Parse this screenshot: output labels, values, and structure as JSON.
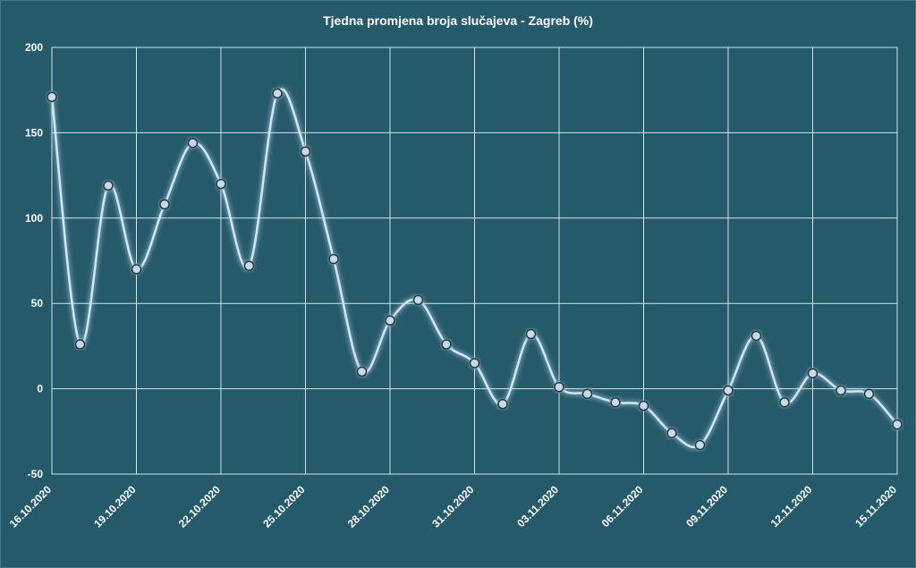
{
  "chart_data": {
    "type": "line",
    "title": "Tjedna promjena broja slučajeva - Zagreb (%)",
    "xlabel": "",
    "ylabel": "",
    "ylim": [
      -50,
      200
    ],
    "yticks": [
      "200",
      "150",
      "100",
      "50",
      "0",
      "-50"
    ],
    "x_tick_labels": [
      "16.10.2020",
      "19.10.2020",
      "22.10.2020",
      "25.10.2020",
      "28.10.2020",
      "31.10.2020",
      "03.11.2020",
      "06.11.2020",
      "09.11.2020",
      "12.11.2020",
      "15.11.2020"
    ],
    "x": [
      "16.10.2020",
      "17.10.2020",
      "18.10.2020",
      "19.10.2020",
      "20.10.2020",
      "21.10.2020",
      "22.10.2020",
      "23.10.2020",
      "24.10.2020",
      "25.10.2020",
      "26.10.2020",
      "27.10.2020",
      "28.10.2020",
      "29.10.2020",
      "30.10.2020",
      "31.10.2020",
      "01.11.2020",
      "02.11.2020",
      "03.11.2020",
      "04.11.2020",
      "05.11.2020",
      "06.11.2020",
      "07.11.2020",
      "08.11.2020",
      "09.11.2020",
      "10.11.2020",
      "11.11.2020",
      "12.11.2020",
      "13.11.2020",
      "14.11.2020",
      "15.11.2020"
    ],
    "values": [
      171,
      26,
      119,
      70,
      108,
      144,
      120,
      72,
      173,
      139,
      76,
      10,
      40,
      52,
      26,
      15,
      -9,
      32,
      1,
      -3,
      -8,
      -10,
      -26,
      -33,
      -1,
      31,
      -8,
      9,
      -1,
      -3,
      -21
    ],
    "grid": true,
    "colors": {
      "background": "#255a6b",
      "line": "#cfe6f5",
      "marker_fill": "#c9d9e6",
      "marker_stroke": "#1c3a48",
      "grid": "#d7e3ea"
    }
  }
}
